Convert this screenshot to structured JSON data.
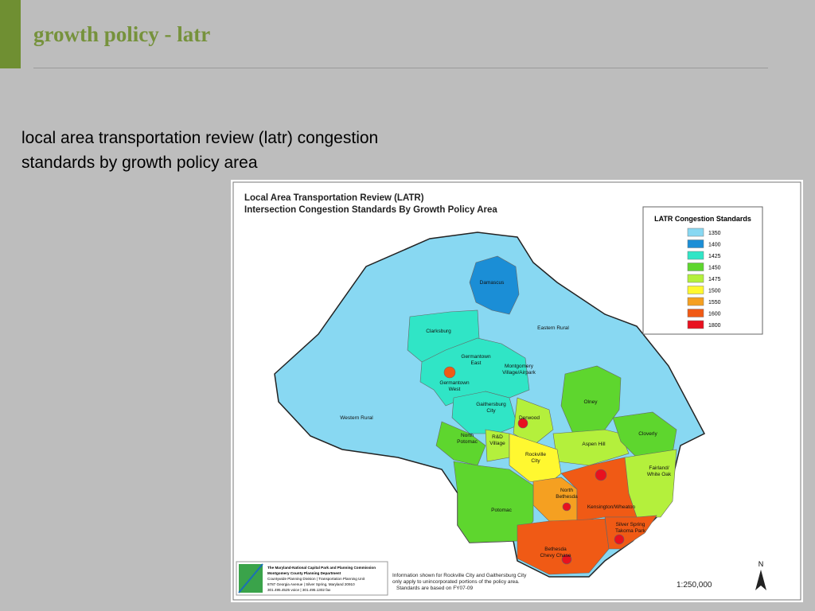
{
  "header": {
    "title": "growth policy - latr"
  },
  "subtitle": [
    "local area transportation review (latr) congestion",
    "standards by growth policy area"
  ],
  "map": {
    "title": [
      "Local Area Transportation Review (LATR)",
      "Intersection Congestion Standards By Growth Policy Area"
    ],
    "legend": {
      "title": "LATR Congestion Standards",
      "items": [
        {
          "label": "1350",
          "color": "#88d8f2"
        },
        {
          "label": "1400",
          "color": "#1b8ed6"
        },
        {
          "label": "1425",
          "color": "#30e5c6"
        },
        {
          "label": "1450",
          "color": "#5ed62e"
        },
        {
          "label": "1475",
          "color": "#b4f03c"
        },
        {
          "label": "1500",
          "color": "#fff830"
        },
        {
          "label": "1550",
          "color": "#f5a021"
        },
        {
          "label": "1600",
          "color": "#f05a15"
        },
        {
          "label": "1800",
          "color": "#e8111f"
        }
      ]
    },
    "areas": [
      {
        "lines": [
          "Damascus"
        ]
      },
      {
        "lines": [
          "Clarksburg"
        ]
      },
      {
        "lines": [
          "Eastern Rural"
        ]
      },
      {
        "lines": [
          "Germantown",
          "East"
        ]
      },
      {
        "lines": [
          "Montgomery",
          "Village/Airpark"
        ]
      },
      {
        "lines": [
          "Germantown",
          "West"
        ]
      },
      {
        "lines": [
          "Gaithersburg",
          "City"
        ]
      },
      {
        "lines": [
          "Derwood"
        ]
      },
      {
        "lines": [
          "Olney"
        ]
      },
      {
        "lines": [
          "Western Rural"
        ]
      },
      {
        "lines": [
          "North",
          "Potomac"
        ]
      },
      {
        "lines": [
          "R&D",
          "Village"
        ]
      },
      {
        "lines": [
          "Aspen Hill"
        ]
      },
      {
        "lines": [
          "Cloverly"
        ]
      },
      {
        "lines": [
          "Rockville",
          "City"
        ]
      },
      {
        "lines": [
          "Fairland/",
          "White Oak"
        ]
      },
      {
        "lines": [
          "North",
          "Bethesda"
        ]
      },
      {
        "lines": [
          "Kensington/Wheaton"
        ]
      },
      {
        "lines": [
          "Potomac"
        ]
      },
      {
        "lines": [
          "Silver Spring",
          "Takoma Park"
        ]
      },
      {
        "lines": [
          "Bethesda",
          "Chevy Chase"
        ]
      }
    ],
    "agency": [
      "The Maryland-National Capital Park and Planning Commission",
      "Montgomery County Planning Department",
      "Countywide Planning Division | Transportation Planning Unit",
      "8787 Georgia Avenue | Silver Spring, Maryland 20910",
      "301.495.4525 voice | 301.495.1302 fax"
    ],
    "note": [
      "Information shown for Rockville City and Gaithersburg City",
      "only apply to unincorporated portions of the policy area.",
      "Standards are based on FY07-09"
    ],
    "scale": "1:250,000",
    "north": "N"
  }
}
